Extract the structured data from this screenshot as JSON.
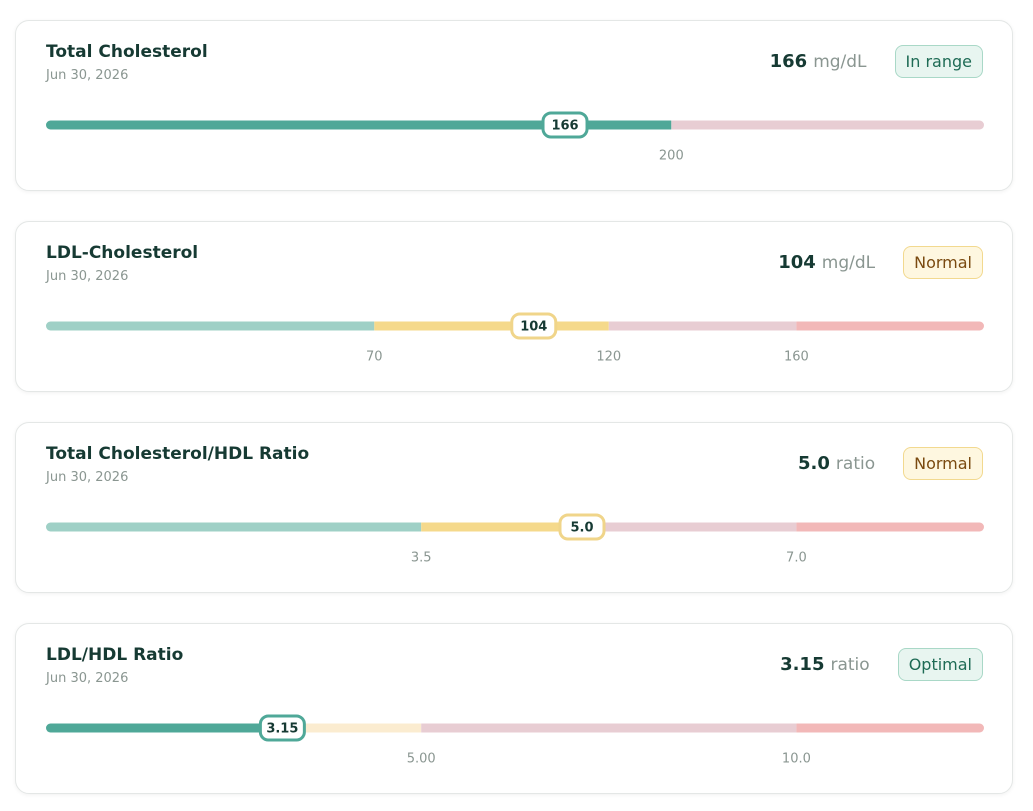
{
  "cards": [
    {
      "title": "Total Cholesterol",
      "date": "Jun 30, 2026",
      "value": 166,
      "unit": "mg/dL",
      "status": "In range",
      "status_style": "good",
      "xlim": [
        0,
        300
      ],
      "xticks": [
        200
      ],
      "bands": [
        "#4fa898",
        "#e8cdd3"
      ],
      "marker_color": "#4fa898"
    },
    {
      "title": "LDL-Cholesterol",
      "date": "Jun 30, 2026",
      "value": 104,
      "unit": "mg/dL",
      "status": "Normal",
      "status_style": "normal",
      "xlim": [
        0,
        200
      ],
      "xticks": [
        70,
        120,
        160
      ],
      "bands": [
        "#9fd0c6",
        "#f5d98b",
        "#e8cdd3",
        "#f2b8b8"
      ],
      "marker_color": "#f0d58a"
    },
    {
      "title": "Total Cholesterol/HDL Ratio",
      "date": "Jun 30, 2026",
      "value": {
        "value": 5,
        "label": "5.0"
      },
      "unit": "ratio",
      "status": "Normal",
      "status_style": "normal",
      "xlim": [
        0,
        8.75
      ],
      "xticks": [
        3.5,
        {
          "value": 7,
          "label": "7.0"
        }
      ],
      "bands": [
        "#9fd0c6",
        [
          "#f5d98b",
          "#e8cdd3"
        ],
        "#f2b8b8"
      ],
      "marker_color": "#f0d58a"
    },
    {
      "title": "LDL/HDL Ratio",
      "date": "Jun 30, 2026",
      "value": 3.15,
      "unit": "ratio",
      "status": "Optimal",
      "status_style": "good",
      "xlim": [
        0,
        12.5
      ],
      "xticks": [
        {
          "value": 5,
          "label": "5.00"
        },
        {
          "value": 10,
          "label": "10.0"
        }
      ],
      "bands": [
        [
          "#4fa898",
          "#fbecd0"
        ],
        "#e8cdd3",
        "#f2b8b8"
      ],
      "marker_color": "#4fa898"
    }
  ]
}
